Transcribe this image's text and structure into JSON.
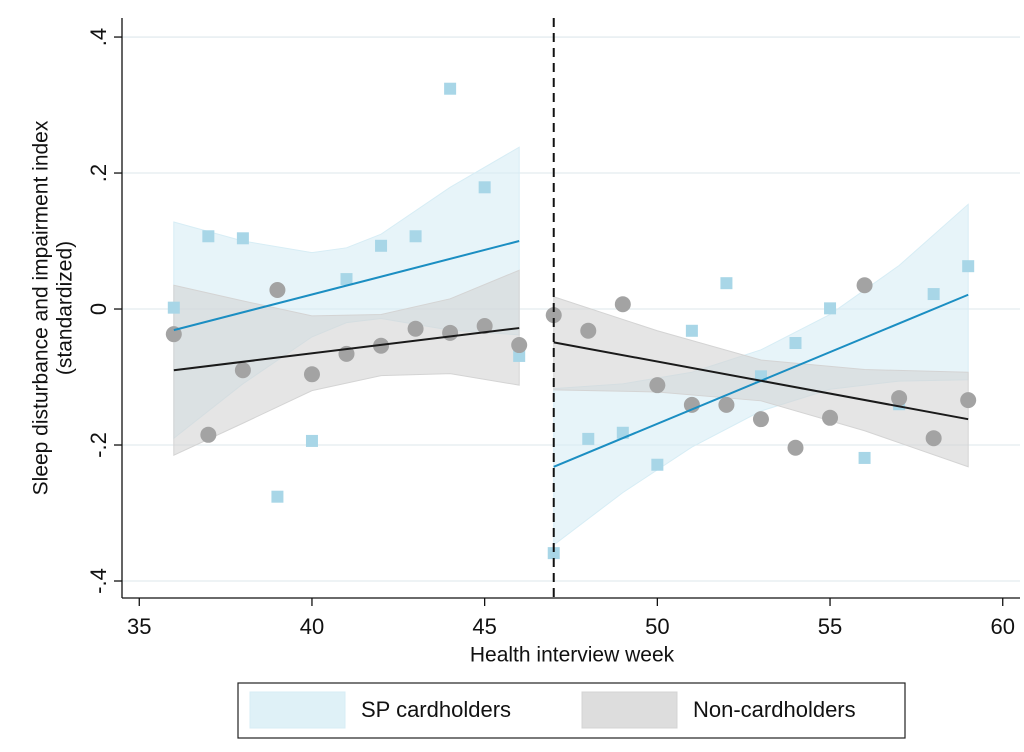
{
  "chart_data": {
    "type": "scatter",
    "x_label": "Health interview week",
    "y_label": [
      "Sleep disturbance and impairment index",
      "(standardized)"
    ],
    "xlim": [
      34.5,
      60.5
    ],
    "ylim": [
      -0.425,
      0.428
    ],
    "xticks": [
      35,
      40,
      45,
      50,
      55,
      60
    ],
    "yticks": [
      {
        "value": 0.4,
        "label": ".4"
      },
      {
        "value": 0.2,
        "label": ".2"
      },
      0,
      {
        "value": -0.2,
        "label": "-.2"
      },
      {
        "value": -0.4,
        "label": "-.4"
      }
    ],
    "grid": true,
    "cutoff": 47,
    "legend": "bottom",
    "x": [
      36,
      37,
      38,
      39,
      40,
      41,
      42,
      43,
      44,
      45,
      46,
      47,
      48,
      49,
      50,
      51,
      52,
      53,
      54,
      55,
      56,
      57,
      58,
      59
    ],
    "series": [
      {
        "name": "SP cardholders",
        "marker": "square",
        "color": "#a8d6e7",
        "line_color": "#1b8ec2",
        "band_color": "#d7edf5",
        "values": [
          0.002,
          0.107,
          0.104,
          -0.276,
          -0.194,
          0.044,
          0.093,
          0.107,
          0.324,
          0.179,
          -0.069,
          -0.359,
          -0.191,
          -0.182,
          -0.229,
          -0.032,
          0.038,
          -0.099,
          -0.05,
          0.001,
          -0.219,
          -0.14,
          0.022,
          0.063
        ],
        "fits": [
          {
            "x": [
              36,
              46
            ],
            "values": [
              -0.031,
              0.1
            ]
          },
          {
            "x": [
              47,
              59
            ],
            "values": [
              -0.232,
              0.021
            ]
          }
        ],
        "bands": [
          {
            "x": [
              36,
              38,
              40,
              41,
              42,
              44,
              46
            ],
            "upper": [
              0.128,
              0.1,
              0.083,
              0.09,
              0.11,
              0.179,
              0.238
            ],
            "lower": [
              -0.19,
              -0.11,
              -0.041,
              -0.02,
              -0.014,
              -0.031,
              -0.038
            ]
          },
          {
            "x": [
              47,
              49,
              51,
              53,
              55,
              57,
              59
            ],
            "upper": [
              -0.117,
              -0.11,
              -0.093,
              -0.06,
              -0.008,
              0.064,
              0.154
            ],
            "lower": [
              -0.347,
              -0.27,
              -0.203,
              -0.15,
              -0.118,
              -0.106,
              -0.104
            ]
          }
        ]
      },
      {
        "name": "Non-cardholders",
        "marker": "circle",
        "color": "#a3a3a3",
        "line_color": "#1a1a1a",
        "band_color": "#d4d4d4",
        "values": [
          -0.037,
          -0.185,
          -0.09,
          0.028,
          -0.096,
          -0.066,
          -0.054,
          -0.029,
          -0.035,
          -0.025,
          -0.053,
          -0.009,
          -0.032,
          0.007,
          -0.112,
          -0.141,
          -0.141,
          -0.162,
          -0.204,
          -0.16,
          0.035,
          -0.131,
          -0.19,
          -0.134
        ],
        "fits": [
          {
            "x": [
              36,
              46
            ],
            "values": [
              -0.09,
              -0.028
            ]
          },
          {
            "x": [
              47,
              59
            ],
            "values": [
              -0.049,
              -0.162
            ]
          }
        ],
        "bands": [
          {
            "x": [
              36,
              38,
              40,
              42,
              44,
              46
            ],
            "upper": [
              0.035,
              0.012,
              -0.01,
              -0.008,
              0.015,
              0.057
            ],
            "lower": [
              -0.215,
              -0.168,
              -0.12,
              -0.098,
              -0.095,
              -0.112
            ]
          },
          {
            "x": [
              47,
              50,
              53,
              56,
              59
            ],
            "upper": [
              0.018,
              -0.032,
              -0.075,
              -0.089,
              -0.093
            ],
            "lower": [
              -0.119,
              -0.122,
              -0.135,
              -0.179,
              -0.232
            ]
          }
        ]
      }
    ]
  }
}
